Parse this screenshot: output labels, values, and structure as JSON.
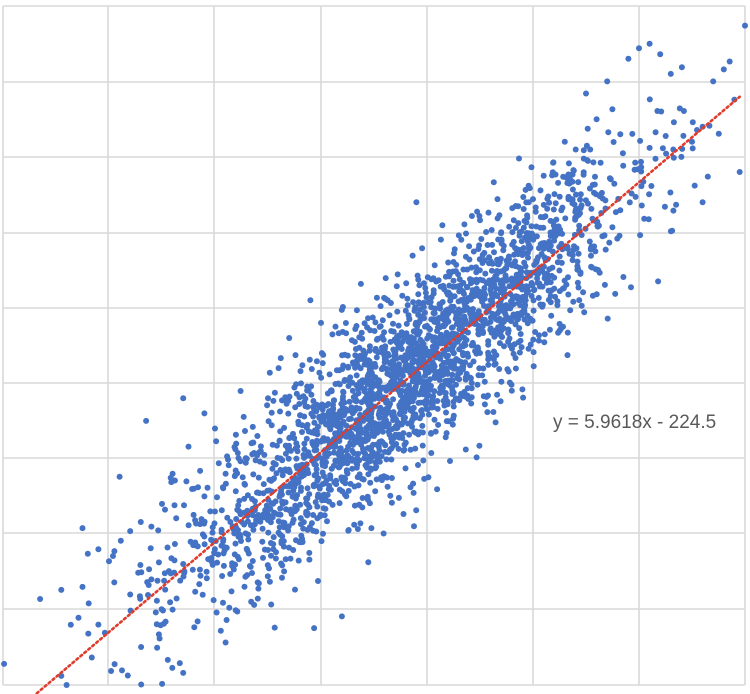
{
  "chart_data": {
    "type": "scatter",
    "title": "",
    "xlabel": "",
    "ylabel": "",
    "grid": true,
    "xlim": [
      0,
      70
    ],
    "ylim": [
      -200,
      250
    ],
    "trendline": {
      "type": "linear",
      "slope": 5.9618,
      "intercept": -224.5,
      "style": "dotted",
      "color": "#e03b2b",
      "label": "y = 5.9618x - 224.5",
      "x_range": [
        0.2,
        69.5
      ]
    },
    "series": [
      {
        "color": "#4472c4",
        "note_points": "representative sample of the dense cloud; outliers read from image",
        "points": [
          [
            0.1,
            -186
          ],
          [
            6,
            -200
          ],
          [
            5.5,
            -194
          ],
          [
            17,
            -192
          ],
          [
            3.5,
            -143
          ],
          [
            5.5,
            -137
          ],
          [
            7.5,
            -135
          ],
          [
            10.5,
            -132
          ],
          [
            8,
            -113
          ],
          [
            9,
            -110
          ],
          [
            10,
            -118
          ],
          [
            12,
            -98
          ],
          [
            14,
            -95
          ],
          [
            13,
            -92
          ],
          [
            11,
            -62
          ],
          [
            7.5,
            -96
          ],
          [
            17.5,
            -42
          ],
          [
            13.5,
            -25
          ],
          [
            17,
            -10
          ],
          [
            19,
            -20
          ],
          [
            20,
            -30
          ],
          [
            22,
            -40
          ],
          [
            24,
            -35
          ],
          [
            27,
            30
          ],
          [
            29,
            55
          ],
          [
            30,
            40
          ],
          [
            26,
            10
          ],
          [
            31,
            -18
          ],
          [
            34,
            -25
          ],
          [
            35,
            -35
          ],
          [
            28,
            -60
          ],
          [
            36,
            18
          ],
          [
            38,
            48
          ],
          [
            40,
            38
          ],
          [
            42,
            80
          ],
          [
            43,
            98
          ],
          [
            45,
            108
          ],
          [
            44,
            82
          ],
          [
            47,
            100
          ],
          [
            49,
            85
          ],
          [
            50,
            122
          ],
          [
            51,
            110
          ],
          [
            53,
            160
          ],
          [
            55,
            192
          ],
          [
            56,
            175
          ],
          [
            57,
            200
          ],
          [
            59,
            215
          ],
          [
            60,
            222
          ],
          [
            61,
            225
          ],
          [
            62,
            218
          ],
          [
            63,
            205
          ],
          [
            65,
            160
          ],
          [
            66,
            170
          ],
          [
            66,
            120
          ],
          [
            64,
            150
          ],
          [
            67,
            200
          ],
          [
            68,
            208
          ],
          [
            69.5,
            140
          ],
          [
            70,
            237
          ],
          [
            69,
            188
          ],
          [
            48,
            -5
          ],
          [
            45,
            20
          ],
          [
            46,
            55
          ],
          [
            52,
            70
          ],
          [
            33,
            -5
          ],
          [
            39,
            120
          ],
          [
            41,
            40
          ],
          [
            25,
            -10
          ],
          [
            23,
            -50
          ],
          [
            21,
            -60
          ],
          [
            19,
            -75
          ],
          [
            15,
            -80
          ],
          [
            16,
            -60
          ],
          [
            18,
            -70
          ],
          [
            20,
            -85
          ],
          [
            22,
            -90
          ],
          [
            12,
            -140
          ],
          [
            9,
            -160
          ],
          [
            14,
            -130
          ],
          [
            16,
            -150
          ]
        ]
      }
    ]
  }
}
